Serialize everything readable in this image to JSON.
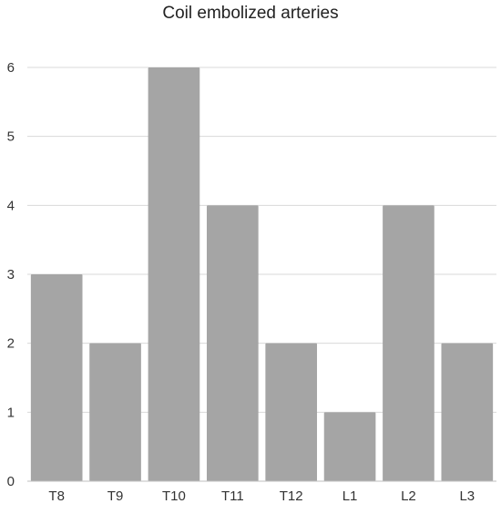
{
  "chart_data": {
    "type": "bar",
    "title": "Coil embolized arteries",
    "categories": [
      "T8",
      "T9",
      "T10",
      "T11",
      "T12",
      "L1",
      "L2",
      "L3"
    ],
    "values": [
      3,
      2,
      6,
      4,
      2,
      1,
      4,
      2
    ],
    "ylim": [
      0,
      6
    ],
    "yticks": [
      "0",
      "1",
      "2",
      "3",
      "4",
      "5",
      "6"
    ],
    "grid": true,
    "legend": "none",
    "colors": {
      "bar": "#a5a5a5",
      "grid": "#d9d9d9",
      "axis": "#bfbfbf",
      "text": "#333333"
    }
  }
}
